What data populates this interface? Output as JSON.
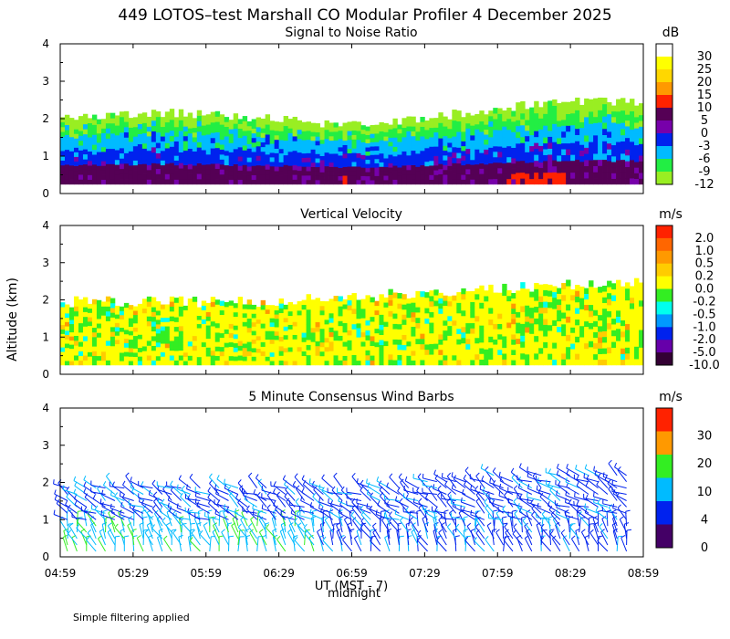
{
  "title": "449 LOTOS–test Marshall CO Modular Profiler  4 December 2025",
  "y_axis_label": "Altitude (km)",
  "x_axis_label": "UT  (MST - 7)",
  "midnight_label": "midnight",
  "footnote": "Simple filtering applied",
  "chart_data": [
    {
      "type": "heatmap",
      "title": "Signal to Noise Ratio",
      "x": [
        "04:59",
        "05:29",
        "05:59",
        "06:29",
        "06:59",
        "07:29",
        "07:59",
        "08:29",
        "08:59"
      ],
      "ylim": [
        0,
        4
      ],
      "yticks": [
        "0",
        "1",
        "2",
        "3",
        "4"
      ],
      "colorbar": {
        "unit": "dB",
        "labels": [
          "30",
          "25",
          "20",
          "15",
          "10",
          "5",
          "0",
          "-3",
          "-6",
          "-9",
          "-12"
        ],
        "colors": [
          "#ffffff",
          "#ffff00",
          "#ffd700",
          "#ff9900",
          "#ff2200",
          "#550055",
          "#7700aa",
          "#0022ee",
          "#00bbff",
          "#22ee44",
          "#99ee22"
        ]
      }
    },
    {
      "type": "heatmap",
      "title": "Vertical Velocity",
      "x": [
        "04:59",
        "05:29",
        "05:59",
        "06:29",
        "06:59",
        "07:29",
        "07:59",
        "08:29",
        "08:59"
      ],
      "ylim": [
        0,
        4
      ],
      "yticks": [
        "0",
        "1",
        "2",
        "3",
        "4"
      ],
      "colorbar": {
        "unit": "m/s",
        "labels": [
          "2.0",
          "1.0",
          "0.5",
          "0.2",
          "0.0",
          "-0.2",
          "-0.5",
          "-1.0",
          "-2.0",
          "-5.0",
          "-10.0"
        ],
        "colors": [
          "#ff2200",
          "#ff6600",
          "#ff9900",
          "#ffcc00",
          "#ffff00",
          "#33ee22",
          "#00ffee",
          "#0099ff",
          "#0022ee",
          "#6600aa",
          "#330033"
        ]
      }
    },
    {
      "type": "scatter",
      "title": "5 Minute Consensus Wind Barbs",
      "x": [
        "04:59",
        "05:29",
        "05:59",
        "06:29",
        "06:59",
        "07:29",
        "07:59",
        "08:29",
        "08:59"
      ],
      "ylim": [
        0,
        4
      ],
      "yticks": [
        "0",
        "1",
        "2",
        "3",
        "4"
      ],
      "colorbar": {
        "unit": "m/s",
        "labels": [
          "30",
          "20",
          "10",
          "4",
          "0"
        ],
        "colors": [
          "#ff2200",
          "#ff9900",
          "#33ee22",
          "#00bbff",
          "#0022ee",
          "#440066"
        ]
      }
    }
  ]
}
